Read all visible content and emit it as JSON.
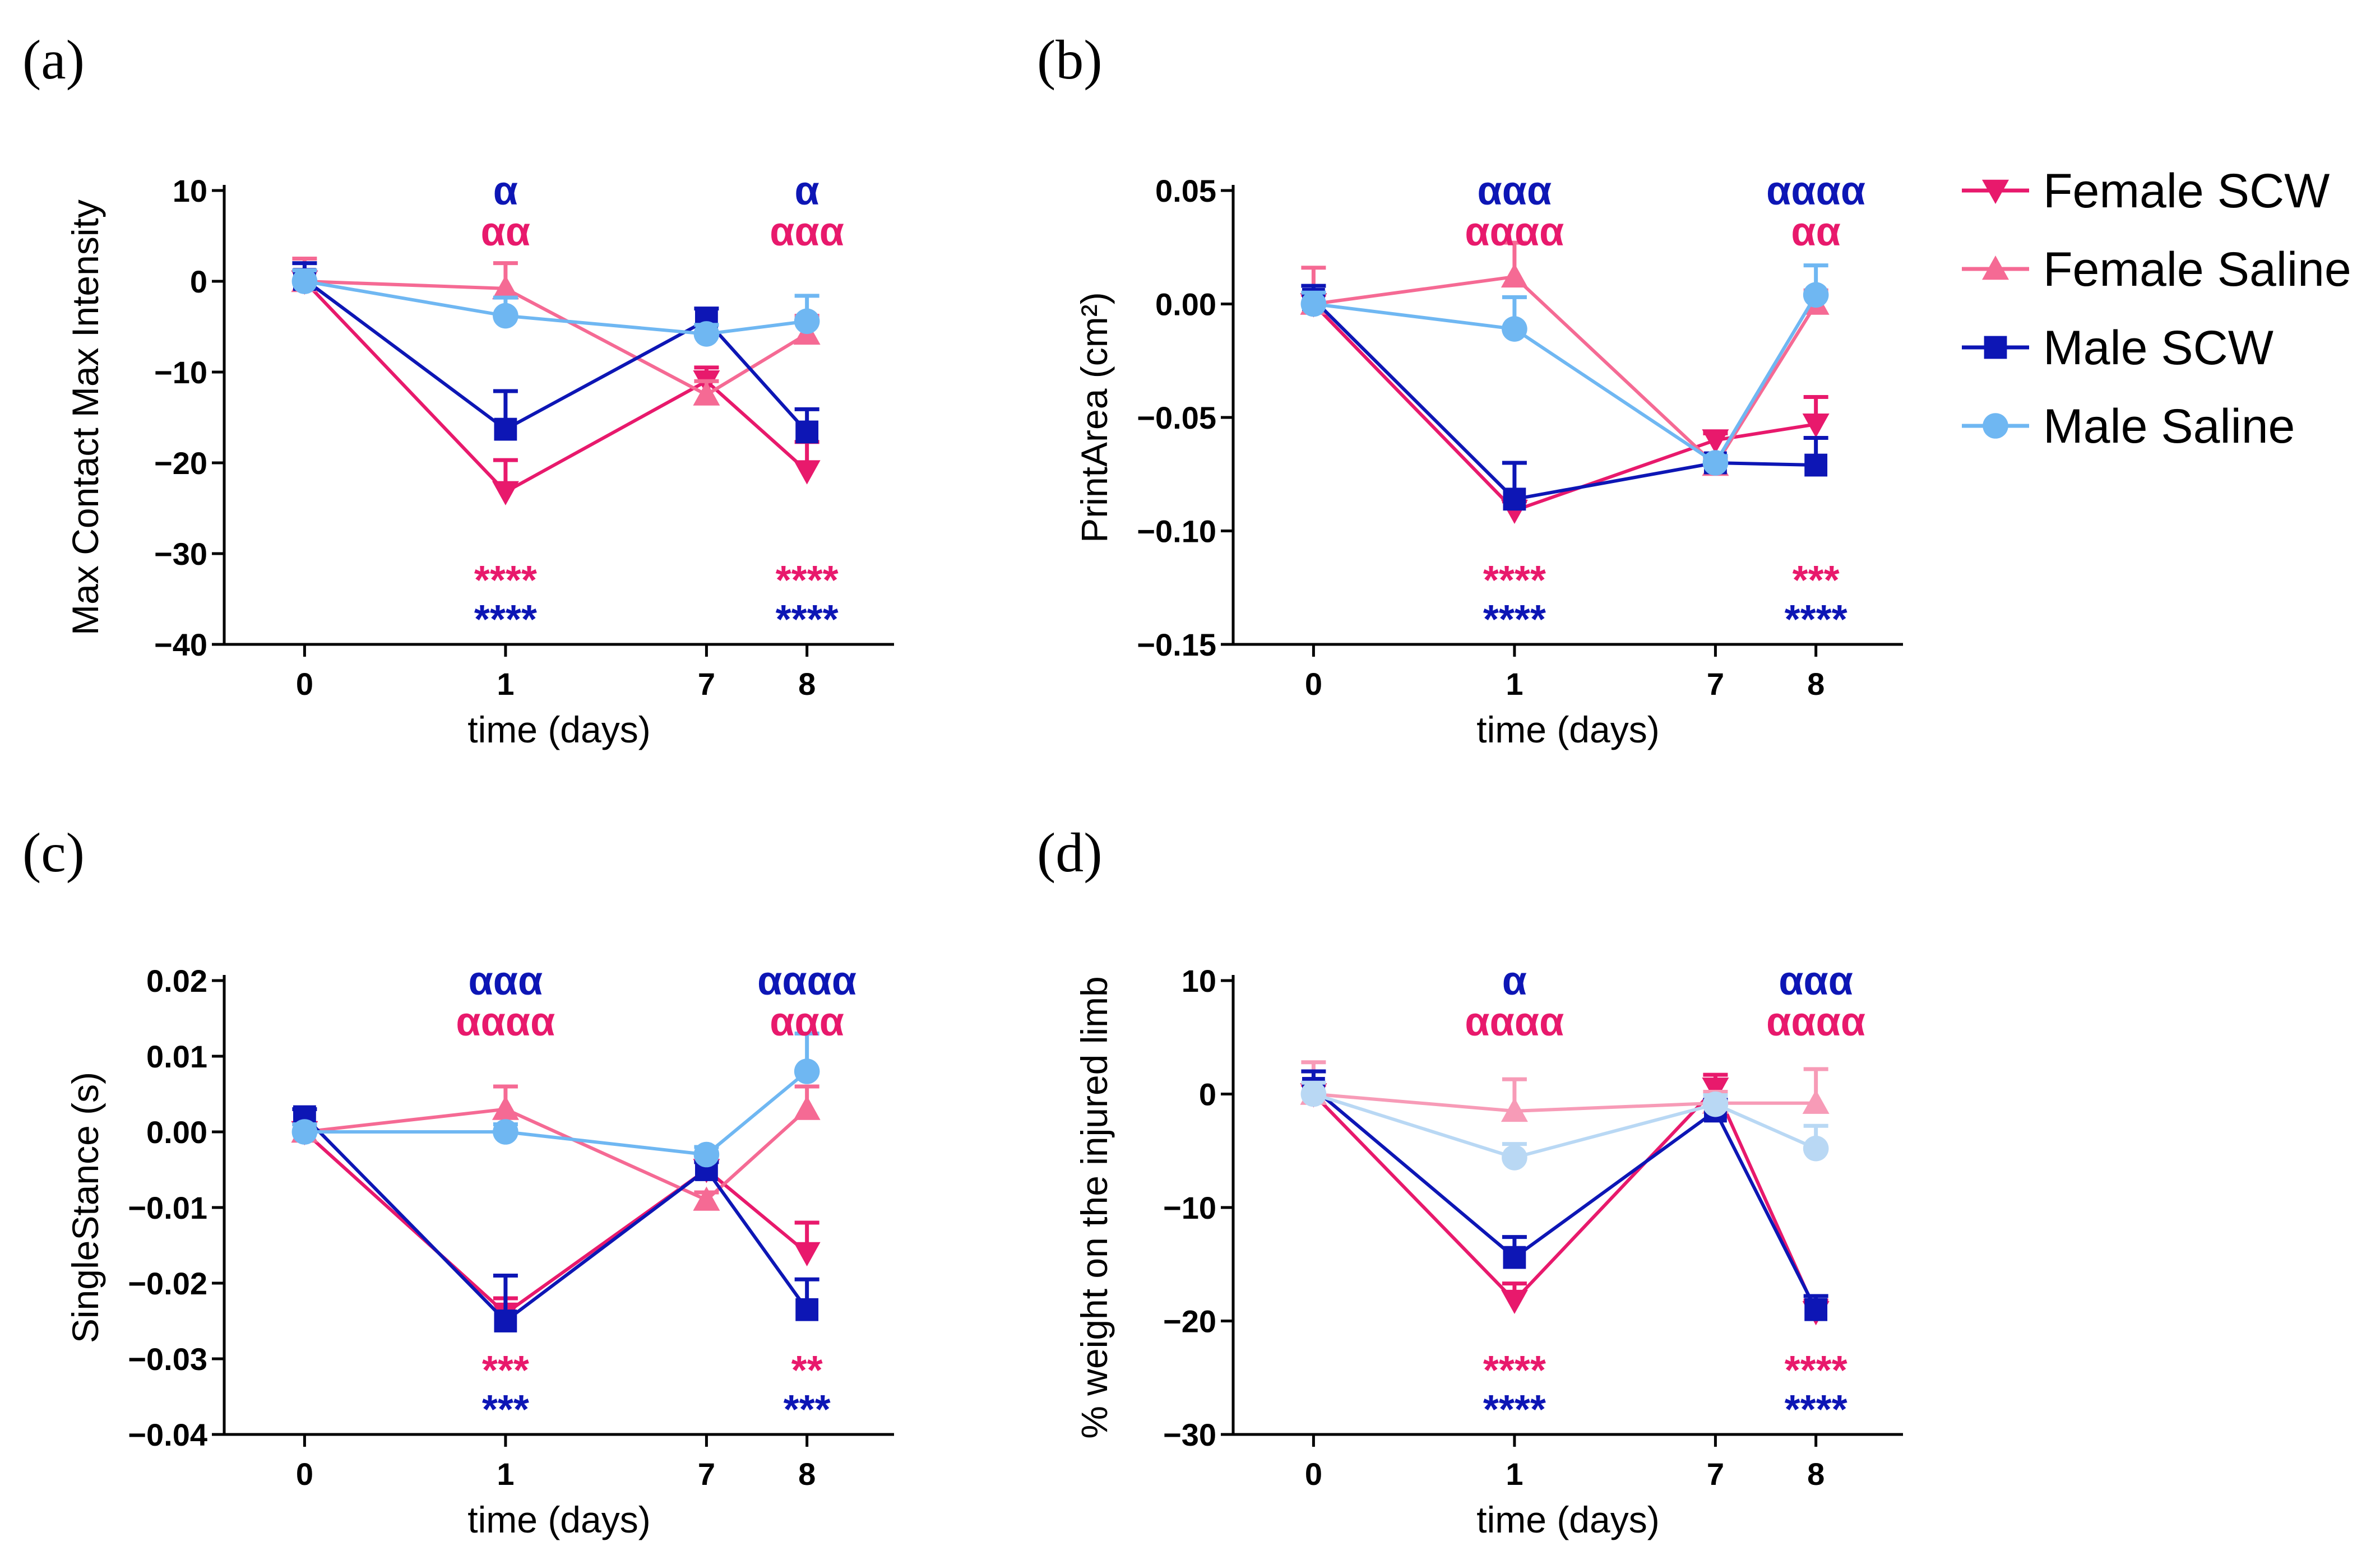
{
  "colors": {
    "female_scw": "#e8196c",
    "female_saline": "#f56a94",
    "male_scw": "#0d16b5",
    "male_saline": "#6fb7f2",
    "female_saline_light": "#f79bb7",
    "male_saline_light": "#b9d8f4"
  },
  "legend": [
    {
      "label": "Female SCW",
      "color": "#e8196c",
      "marker": "triangle-down"
    },
    {
      "label": "Female Saline",
      "color": "#f56a94",
      "marker": "triangle-up"
    },
    {
      "label": "Male SCW",
      "color": "#0d16b5",
      "marker": "square"
    },
    {
      "label": "Male Saline",
      "color": "#6fb7f2",
      "marker": "circle"
    }
  ],
  "chart_data": [
    {
      "type": "line",
      "panel": "(a)",
      "ylabel": "Max Contact Max Intensity",
      "xlabel": "time (days)",
      "categories": [
        "0",
        "1",
        "7",
        "8"
      ],
      "ylim": [
        -40,
        10
      ],
      "yticks": [
        10,
        0,
        -10,
        -20,
        -30,
        -40
      ],
      "ytick_labels": [
        "10",
        "0",
        "−10",
        "−20",
        "−30",
        "−40"
      ],
      "series": [
        {
          "name": "Female SCW",
          "values": [
            0,
            -23.2,
            -11,
            -20.9
          ],
          "err": [
            1.2,
            3.5,
            1.5,
            3.2
          ],
          "color": "#e8196c",
          "marker": "triangle-down"
        },
        {
          "name": "Female Saline",
          "values": [
            0,
            -0.8,
            -12.5,
            -5.8
          ],
          "err": [
            2.5,
            2.8,
            1.5,
            2.0
          ],
          "color": "#f56a94",
          "marker": "triangle-up"
        },
        {
          "name": "Male SCW",
          "values": [
            0.2,
            -16.3,
            -4.3,
            -16.6
          ],
          "err": [
            1.8,
            4.2,
            1.3,
            2.5
          ],
          "color": "#0d16b5",
          "marker": "square"
        },
        {
          "name": "Male Saline",
          "values": [
            0,
            -3.8,
            -5.8,
            -4.4
          ],
          "err": [
            1.2,
            2.0,
            1.0,
            2.8
          ],
          "color": "#6fb7f2",
          "marker": "circle"
        }
      ],
      "annotations": [
        {
          "text": "α",
          "x": "1",
          "color": "#0d16b5",
          "pos": "upper"
        },
        {
          "text": "αα",
          "x": "1",
          "color": "#e8196c",
          "pos": "lower"
        },
        {
          "text": "α",
          "x": "8",
          "color": "#0d16b5",
          "pos": "upper"
        },
        {
          "text": "ααα",
          "x": "8",
          "color": "#e8196c",
          "pos": "lower"
        },
        {
          "text": "****",
          "x": "1",
          "color": "#e8196c",
          "pos": "bottom-upper"
        },
        {
          "text": "****",
          "x": "1",
          "color": "#0d16b5",
          "pos": "bottom-lower"
        },
        {
          "text": "****",
          "x": "8",
          "color": "#e8196c",
          "pos": "bottom-upper"
        },
        {
          "text": "****",
          "x": "8",
          "color": "#0d16b5",
          "pos": "bottom-lower"
        }
      ]
    },
    {
      "type": "line",
      "panel": "(b)",
      "ylabel": "PrintArea (cm²)",
      "xlabel": "time (days)",
      "categories": [
        "0",
        "1",
        "7",
        "8"
      ],
      "ylim": [
        -0.15,
        0.05
      ],
      "yticks": [
        0.05,
        0,
        -0.05,
        -0.1,
        -0.15
      ],
      "ytick_labels": [
        "0.05",
        "0.00",
        "−0.05",
        "−0.10",
        "−0.15"
      ],
      "series": [
        {
          "name": "Female SCW",
          "values": [
            0,
            -0.091,
            -0.06,
            -0.053
          ],
          "err": [
            0.004,
            0.004,
            0.003,
            0.012
          ],
          "color": "#e8196c",
          "marker": "triangle-down"
        },
        {
          "name": "Female Saline",
          "values": [
            0,
            0.012,
            -0.071,
            0
          ],
          "err": [
            0.016,
            0.015,
            0.003,
            0.006
          ],
          "color": "#f56a94",
          "marker": "triangle-up"
        },
        {
          "name": "Male SCW",
          "values": [
            0.002,
            -0.086,
            -0.07,
            -0.071
          ],
          "err": [
            0.006,
            0.016,
            0.003,
            0.012
          ],
          "color": "#0d16b5",
          "marker": "square"
        },
        {
          "name": "Male Saline",
          "values": [
            0,
            -0.011,
            -0.07,
            0.004
          ],
          "err": [
            0.005,
            0.014,
            0.003,
            0.013
          ],
          "color": "#6fb7f2",
          "marker": "circle"
        }
      ],
      "annotations": [
        {
          "text": "ααα",
          "x": "1",
          "color": "#0d16b5",
          "pos": "upper"
        },
        {
          "text": "αααα",
          "x": "1",
          "color": "#e8196c",
          "pos": "lower"
        },
        {
          "text": "αααα",
          "x": "8",
          "color": "#0d16b5",
          "pos": "upper"
        },
        {
          "text": "αα",
          "x": "8",
          "color": "#e8196c",
          "pos": "lower"
        },
        {
          "text": "****",
          "x": "1",
          "color": "#e8196c",
          "pos": "bottom-upper"
        },
        {
          "text": "****",
          "x": "1",
          "color": "#0d16b5",
          "pos": "bottom-lower"
        },
        {
          "text": "***",
          "x": "8",
          "color": "#e8196c",
          "pos": "bottom-upper"
        },
        {
          "text": "****",
          "x": "8",
          "color": "#0d16b5",
          "pos": "bottom-lower"
        }
      ]
    },
    {
      "type": "line",
      "panel": "(c)",
      "ylabel": "SingleStance (s)",
      "xlabel": "time (days)",
      "categories": [
        "0",
        "1",
        "7",
        "8"
      ],
      "ylim": [
        -0.04,
        0.02
      ],
      "yticks": [
        0.02,
        0.01,
        0,
        -0.01,
        -0.02,
        -0.03,
        -0.04
      ],
      "ytick_labels": [
        "0.02",
        "0.01",
        "0.00",
        "−0.01",
        "−0.02",
        "−0.03",
        "−0.04"
      ],
      "series": [
        {
          "name": "Female SCW",
          "values": [
            0,
            -0.024,
            -0.005,
            -0.016
          ],
          "err": [
            0.001,
            0.002,
            0.001,
            0.004
          ],
          "color": "#e8196c",
          "marker": "triangle-down"
        },
        {
          "name": "Female Saline",
          "values": [
            0,
            0.003,
            -0.009,
            0.003
          ],
          "err": [
            0.003,
            0.003,
            0.001,
            0.003
          ],
          "color": "#f56a94",
          "marker": "triangle-up"
        },
        {
          "name": "Male SCW",
          "values": [
            0.002,
            -0.025,
            -0.005,
            -0.0235
          ],
          "err": [
            0.001,
            0.006,
            0.001,
            0.004
          ],
          "color": "#0d16b5",
          "marker": "square"
        },
        {
          "name": "Male Saline",
          "values": [
            0,
            0,
            -0.003,
            0.008
          ],
          "err": [
            0.001,
            0.001,
            0.001,
            0.005
          ],
          "color": "#6fb7f2",
          "marker": "circle"
        }
      ],
      "annotations": [
        {
          "text": "ααα",
          "x": "1",
          "color": "#0d16b5",
          "pos": "upper"
        },
        {
          "text": "αααα",
          "x": "1",
          "color": "#e8196c",
          "pos": "lower"
        },
        {
          "text": "αααα",
          "x": "8",
          "color": "#0d16b5",
          "pos": "upper"
        },
        {
          "text": "ααα",
          "x": "8",
          "color": "#e8196c",
          "pos": "lower"
        },
        {
          "text": "***",
          "x": "1",
          "color": "#e8196c",
          "pos": "bottom-upper"
        },
        {
          "text": "***",
          "x": "1",
          "color": "#0d16b5",
          "pos": "bottom-lower"
        },
        {
          "text": "**",
          "x": "8",
          "color": "#e8196c",
          "pos": "bottom-upper"
        },
        {
          "text": "***",
          "x": "8",
          "color": "#0d16b5",
          "pos": "bottom-lower"
        }
      ]
    },
    {
      "type": "line",
      "panel": "(d)",
      "ylabel": "% weight on the injured limb",
      "xlabel": "time (days)",
      "categories": [
        "0",
        "1",
        "7",
        "8"
      ],
      "ylim": [
        -30,
        10
      ],
      "yticks": [
        10,
        0,
        -10,
        -20,
        -30
      ],
      "ytick_labels": [
        "10",
        "0",
        "−10",
        "−20",
        "−30"
      ],
      "series": [
        {
          "name": "Female SCW",
          "values": [
            0,
            -18.2,
            0.5,
            -19.2
          ],
          "err": [
            0.8,
            1.5,
            1.2,
            1.0
          ],
          "color": "#e8196c",
          "marker": "triangle-down"
        },
        {
          "name": "Female Saline",
          "values": [
            0,
            -1.5,
            -0.8,
            -0.8
          ],
          "err": [
            2.8,
            2.8,
            1.0,
            3.0
          ],
          "color": "#f79bb7",
          "marker": "triangle-up"
        },
        {
          "name": "Male SCW",
          "values": [
            0.5,
            -14.4,
            -1.5,
            -19
          ],
          "err": [
            1.5,
            1.8,
            1.0,
            1.2
          ],
          "color": "#0d16b5",
          "marker": "square"
        },
        {
          "name": "Male Saline",
          "values": [
            0,
            -5.6,
            -0.9,
            -4.8
          ],
          "err": [
            1.0,
            1.2,
            0.8,
            2.0
          ],
          "color": "#b9d8f4",
          "marker": "circle"
        }
      ],
      "annotations": [
        {
          "text": "α",
          "x": "1",
          "color": "#0d16b5",
          "pos": "upper"
        },
        {
          "text": "αααα",
          "x": "1",
          "color": "#e8196c",
          "pos": "lower"
        },
        {
          "text": "ααα",
          "x": "8",
          "color": "#0d16b5",
          "pos": "upper"
        },
        {
          "text": "αααα",
          "x": "8",
          "color": "#e8196c",
          "pos": "lower"
        },
        {
          "text": "****",
          "x": "1",
          "color": "#e8196c",
          "pos": "bottom-upper"
        },
        {
          "text": "****",
          "x": "1",
          "color": "#0d16b5",
          "pos": "bottom-lower"
        },
        {
          "text": "****",
          "x": "8",
          "color": "#e8196c",
          "pos": "bottom-upper"
        },
        {
          "text": "****",
          "x": "8",
          "color": "#0d16b5",
          "pos": "bottom-lower"
        }
      ]
    }
  ]
}
